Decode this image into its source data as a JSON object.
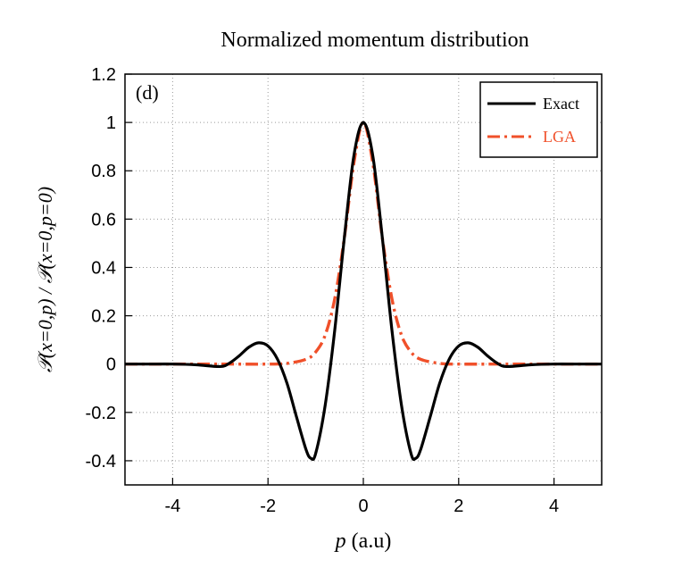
{
  "chart_data": {
    "type": "line",
    "title": "Normalized momentum distribution",
    "panel_label": "(d)",
    "xlabel_var": "p",
    "xlabel_unit": " (a.u)",
    "ylabel": "𝒫(x=0,p) / 𝒫(x=0,p=0)",
    "xlim": [
      -5,
      5
    ],
    "ylim": [
      -0.5,
      1.2
    ],
    "xticks": [
      -4,
      -2,
      0,
      2,
      4
    ],
    "yticks": [
      -0.4,
      -0.2,
      0,
      0.2,
      0.4,
      0.6,
      0.8,
      1,
      1.2
    ],
    "grid": true,
    "legend_position": "top-right",
    "series": [
      {
        "name": "Exact",
        "color": "#000000",
        "style": "solid",
        "x": [
          -5,
          -4.5,
          -4,
          -3.5,
          -3,
          -2.8,
          -2.6,
          -2.4,
          -2.2,
          -2.0,
          -1.8,
          -1.6,
          -1.4,
          -1.2,
          -1.1,
          -1.0,
          -0.8,
          -0.6,
          -0.4,
          -0.2,
          0,
          0.2,
          0.4,
          0.6,
          0.8,
          1.0,
          1.1,
          1.2,
          1.4,
          1.6,
          1.8,
          2.0,
          2.2,
          2.4,
          2.6,
          2.8,
          3.0,
          3.5,
          4,
          4.5,
          5
        ],
        "y": [
          0,
          0,
          0,
          -0.003,
          -0.01,
          0.005,
          0.035,
          0.07,
          0.088,
          0.075,
          0.02,
          -0.08,
          -0.22,
          -0.355,
          -0.39,
          -0.37,
          -0.17,
          0.14,
          0.52,
          0.86,
          1.0,
          0.86,
          0.52,
          0.14,
          -0.17,
          -0.37,
          -0.39,
          -0.355,
          -0.22,
          -0.08,
          0.02,
          0.075,
          0.088,
          0.07,
          0.035,
          0.005,
          -0.01,
          -0.003,
          0,
          0,
          0
        ]
      },
      {
        "name": "LGA",
        "color": "#f0502a",
        "style": "dashdot",
        "x": [
          -5,
          -3,
          -2,
          -1.6,
          -1.2,
          -1.0,
          -0.8,
          -0.6,
          -0.4,
          -0.2,
          0,
          0.2,
          0.4,
          0.6,
          0.8,
          1.0,
          1.2,
          1.6,
          2,
          3,
          5
        ],
        "y": [
          0,
          0,
          0.0,
          0.003,
          0.02,
          0.05,
          0.12,
          0.27,
          0.52,
          0.83,
          1.0,
          0.83,
          0.52,
          0.27,
          0.12,
          0.05,
          0.02,
          0.003,
          0.0,
          0,
          0
        ]
      }
    ]
  }
}
